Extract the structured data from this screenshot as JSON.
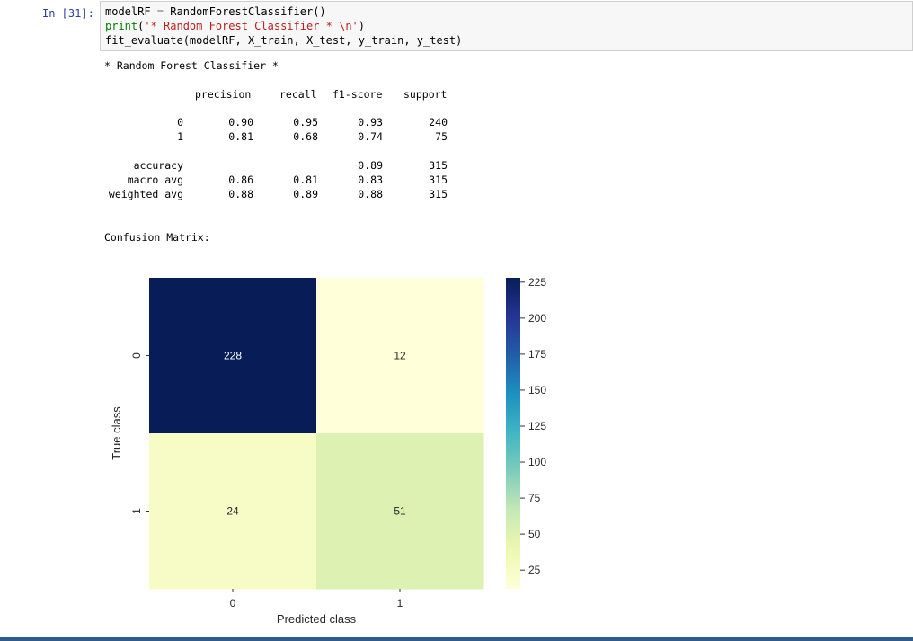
{
  "cell": {
    "prompt": "In [31]:",
    "code": {
      "line1": {
        "name": "modelRF",
        "op": " = ",
        "rest": "RandomForestClassifier()"
      },
      "line2": {
        "fn": "print",
        "open": "(",
        "str": "'* Random Forest Classifier * \\n'",
        "close": ")"
      },
      "line3": "fit_evaluate(modelRF, X_train, X_test, y_train, y_test)"
    }
  },
  "output": {
    "title": "* Random Forest Classifier *",
    "report_header": [
      "precision",
      "recall",
      "f1-score",
      "support"
    ],
    "report_rows": [
      {
        "label": "0",
        "precision": "0.90",
        "recall": "0.95",
        "f1": "0.93",
        "support": "240"
      },
      {
        "label": "1",
        "precision": "0.81",
        "recall": "0.68",
        "f1": "0.74",
        "support": "75"
      },
      {
        "label": "accuracy",
        "precision": "",
        "recall": "",
        "f1": "0.89",
        "support": "315"
      },
      {
        "label": "macro avg",
        "precision": "0.86",
        "recall": "0.81",
        "f1": "0.83",
        "support": "315"
      },
      {
        "label": "weighted avg",
        "precision": "0.88",
        "recall": "0.89",
        "f1": "0.88",
        "support": "315"
      }
    ],
    "cm_label": "Confusion Matrix:"
  },
  "chart_data": {
    "type": "heatmap",
    "rows": [
      "0",
      "1"
    ],
    "cols": [
      "0",
      "1"
    ],
    "values": [
      [
        228,
        12
      ],
      [
        24,
        51
      ]
    ],
    "xlabel": "Predicted class",
    "ylabel": "True class",
    "colormap": "YlGnBu",
    "colorbar_ticks": [
      25,
      50,
      75,
      100,
      125,
      150,
      175,
      200,
      225
    ],
    "colorbar_range": [
      12,
      228
    ]
  },
  "colors": {
    "prompt": "#303F9F",
    "string": "#BA2121",
    "builtin": "#008000",
    "operator": "#666666",
    "bottom_bar": "#2e5b8a"
  }
}
